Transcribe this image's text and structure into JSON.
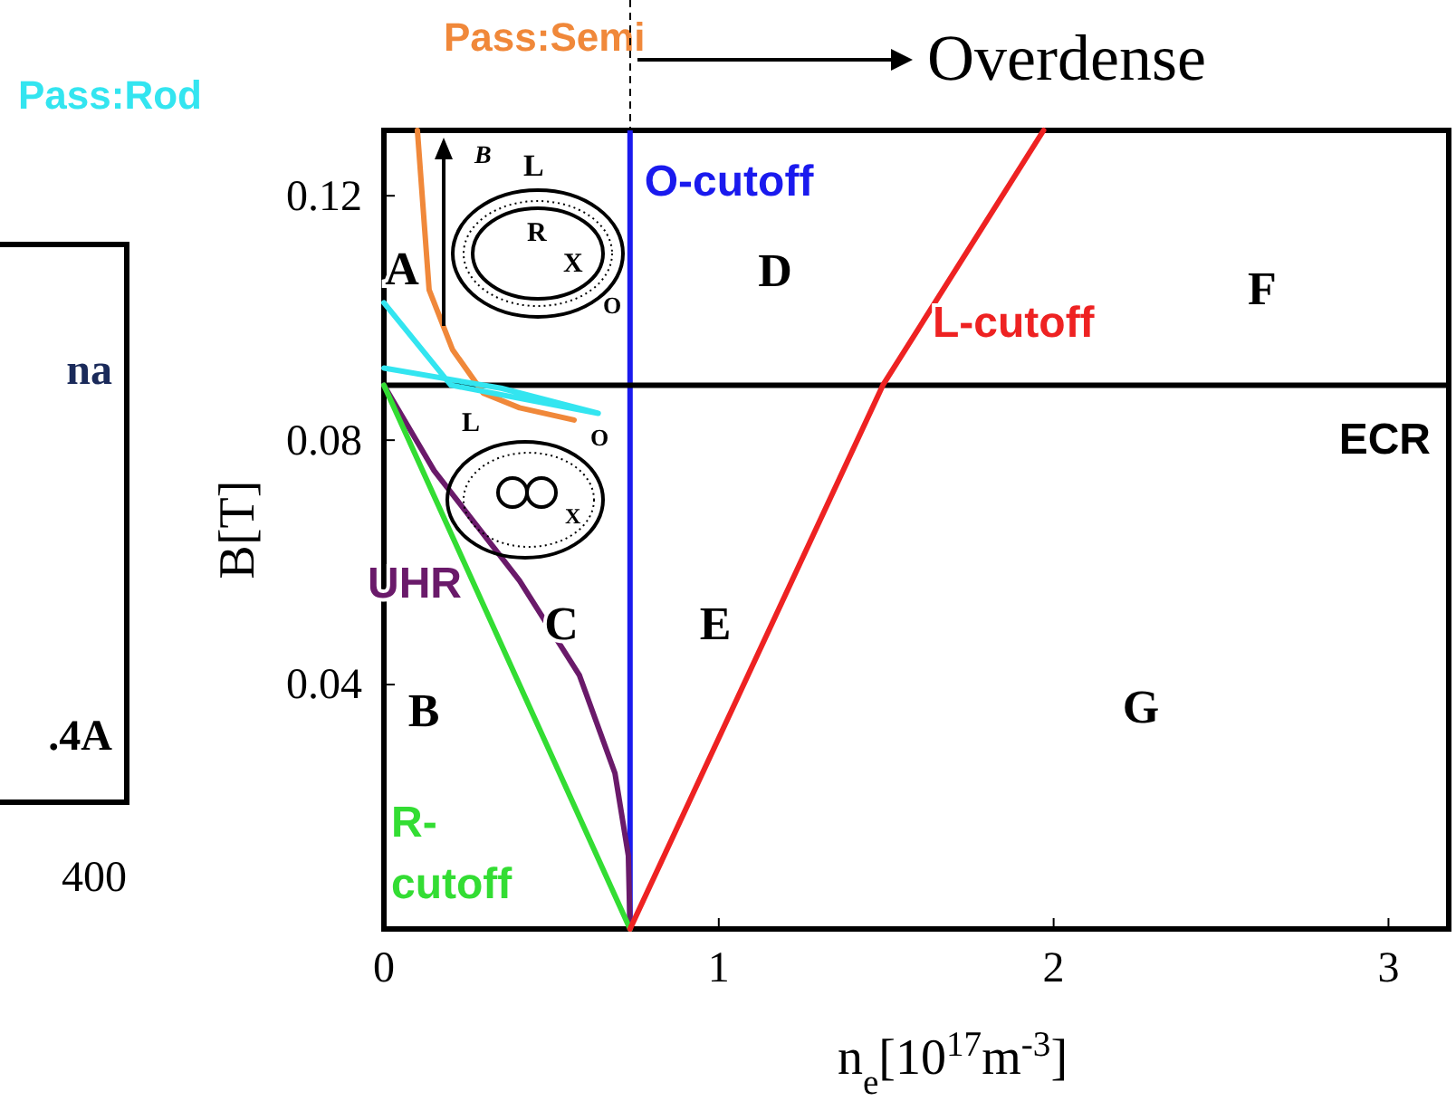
{
  "chart_data": [
    {
      "type": "other",
      "annotations": [
        "na",
        ".4A",
        "400"
      ]
    },
    {
      "type": "line",
      "xlabel": "n$_{e}$[10$^{17}$m$^{-3}$]",
      "ylabel": "B[T]",
      "xlim": [
        0,
        3.18
      ],
      "ylim": [
        0,
        0.1307
      ],
      "xticks": [
        0,
        1,
        2,
        3
      ],
      "yticks": [
        0.04,
        0.08,
        0.12
      ],
      "series": [
        {
          "name": "Pass:Semi",
          "color": "#f0883a",
          "x": [
            0.1,
            0.135,
            0.205,
            0.297,
            0.405,
            0.568
          ],
          "values": [
            0.1307,
            0.1046,
            0.0948,
            0.0877,
            0.0853,
            0.0833
          ]
        },
        {
          "name": "Pass:Rod",
          "color": "#33e5f0",
          "x": [
            0,
            0.35,
            0.64,
            0.2,
            0
          ],
          "values": [
            0.0918,
            0.0885,
            0.0844,
            0.089,
            0.1025
          ]
        },
        {
          "name": "UHR",
          "color": "#6a1a6a",
          "x": [
            0,
            0.15,
            0.405,
            0.584,
            0.69,
            0.73,
            0.735
          ],
          "values": [
            0.089,
            0.075,
            0.057,
            0.0415,
            0.0255,
            0.012,
            0
          ]
        },
        {
          "name": "R-cutoff",
          "color": "#33dd33",
          "x": [
            0,
            0.735
          ],
          "values": [
            0.089,
            0
          ]
        },
        {
          "name": "L-cutoff",
          "color": "#ee2222",
          "x": [
            0.735,
            1.49,
            1.97
          ],
          "values": [
            0,
            0.089,
            0.1307
          ]
        }
      ],
      "ref_lines": [
        {
          "axis": "x",
          "value": 0.735,
          "label": "O-cutoff",
          "color": "#1a1aee"
        },
        {
          "axis": "y",
          "value": 0.089,
          "label": "ECR",
          "color": "#000000"
        }
      ],
      "annotations": [
        "A",
        "B",
        "C",
        "D",
        "E",
        "F",
        "G",
        "Overdense",
        "B",
        "L",
        "R",
        "X",
        "O",
        "L",
        "O",
        "X"
      ]
    }
  ]
}
